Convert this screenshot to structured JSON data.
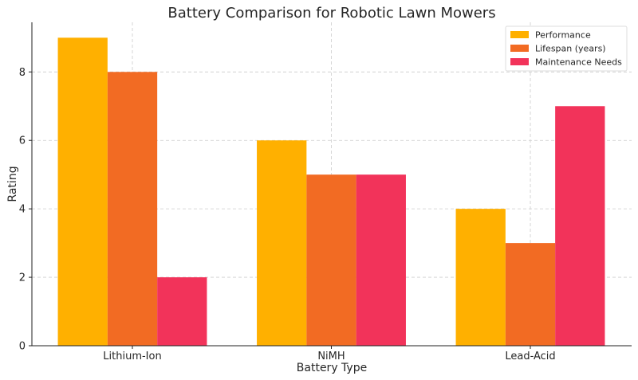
{
  "chart_data": {
    "type": "bar",
    "title": "Battery Comparison for Robotic Lawn Mowers",
    "xlabel": "Battery Type",
    "ylabel": "Rating",
    "categories": [
      "Lithium-Ion",
      "NiMH",
      "Lead-Acid"
    ],
    "series": [
      {
        "name": "Performance",
        "color": "#ffb000",
        "values": [
          9,
          6,
          4
        ]
      },
      {
        "name": "Lifespan (years)",
        "color": "#f26b23",
        "values": [
          8,
          5,
          3
        ]
      },
      {
        "name": "Maintenance Needs",
        "color": "#f2335a",
        "values": [
          2,
          5,
          7
        ]
      }
    ],
    "ylim": [
      0,
      9.45
    ],
    "yticks": [
      0,
      2,
      4,
      6,
      8
    ],
    "grid": true,
    "legend_position": "top-right"
  }
}
